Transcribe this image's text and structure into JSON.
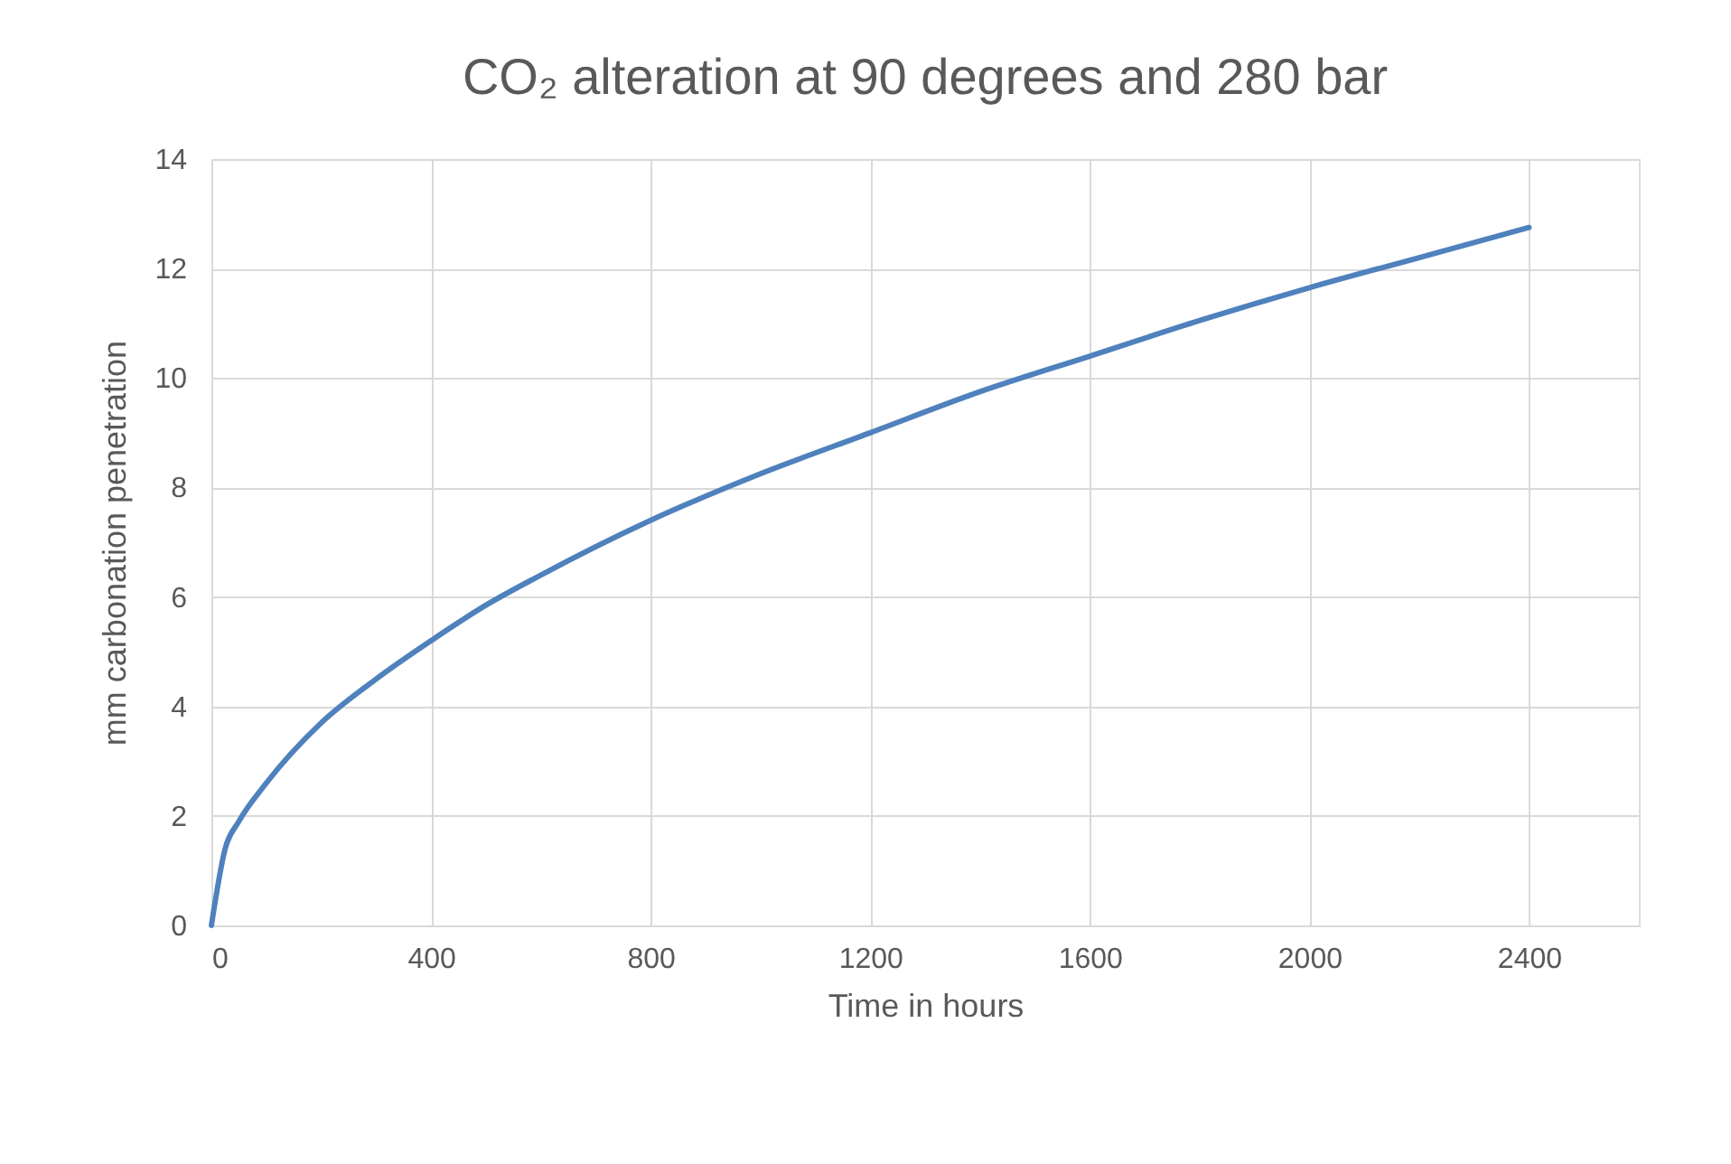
{
  "chart_data": {
    "type": "line",
    "title": "CO₂ alteration at 90 degrees and 280 bar",
    "xlabel": "Time in hours",
    "ylabel": "mm carbonation penetration",
    "x": [
      0,
      25,
      50,
      100,
      200,
      300,
      400,
      500,
      600,
      800,
      1000,
      1200,
      1400,
      1600,
      1800,
      2000,
      2200,
      2400
    ],
    "series": [
      {
        "color": "#4f81bd",
        "values": [
          0,
          1.4,
          1.9,
          2.6,
          3.7,
          4.5,
          5.2,
          5.85,
          6.4,
          7.4,
          8.25,
          9.0,
          9.75,
          10.4,
          11.05,
          11.65,
          12.2,
          12.75
        ]
      }
    ],
    "xlim": [
      0,
      2600
    ],
    "xticks": [
      0,
      400,
      800,
      1200,
      1600,
      2000,
      2400
    ],
    "ylim": [
      0,
      14
    ],
    "yticks": [
      0,
      2,
      4,
      6,
      8,
      10,
      12,
      14
    ],
    "grid": true,
    "marker": "none",
    "line_style": "solid"
  }
}
